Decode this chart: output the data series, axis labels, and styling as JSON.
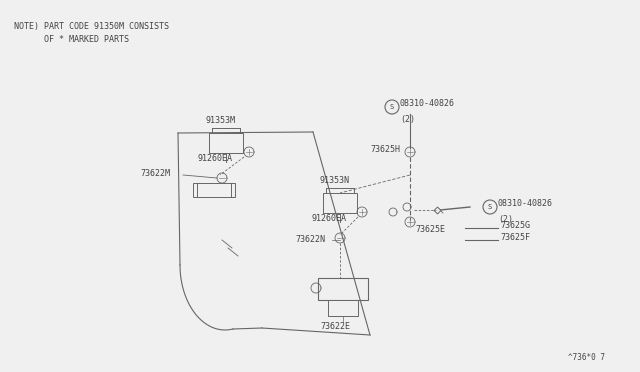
{
  "background_color": "#f0f0f0",
  "note_line1": "NOTE) PART CODE 91350M CONSISTS",
  "note_line2": "      OF * MARKED PARTS",
  "footer": "^736*0 7",
  "font_color": "#444444",
  "line_color": "#666666",
  "figsize": [
    6.4,
    3.72
  ],
  "dpi": 100
}
